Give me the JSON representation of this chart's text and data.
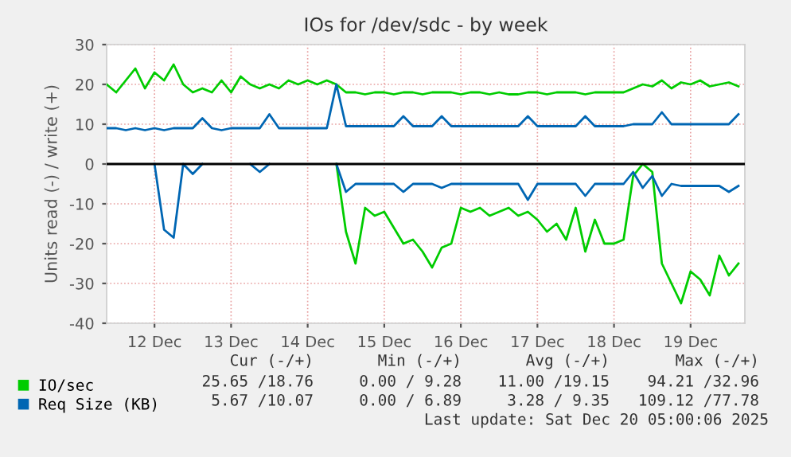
{
  "chart_data": {
    "type": "line",
    "title": "IOs for /dev/sdc - by week",
    "ylabel": "Units read (-) / write (+)",
    "x": [
      "2025-12-11T21:00",
      "2025-12-12T00:00",
      "2025-12-12T03:00",
      "2025-12-12T06:00",
      "2025-12-12T09:00",
      "2025-12-12T12:00",
      "2025-12-12T15:00",
      "2025-12-12T18:00",
      "2025-12-12T21:00",
      "2025-12-13T00:00",
      "2025-12-13T03:00",
      "2025-12-13T06:00",
      "2025-12-13T09:00",
      "2025-12-13T12:00",
      "2025-12-13T15:00",
      "2025-12-13T18:00",
      "2025-12-13T21:00",
      "2025-12-14T00:00",
      "2025-12-14T03:00",
      "2025-12-14T06:00",
      "2025-12-14T09:00",
      "2025-12-14T12:00",
      "2025-12-14T15:00",
      "2025-12-14T18:00",
      "2025-12-14T21:00",
      "2025-12-15T00:00",
      "2025-12-15T03:00",
      "2025-12-15T06:00",
      "2025-12-15T09:00",
      "2025-12-15T12:00",
      "2025-12-15T15:00",
      "2025-12-15T18:00",
      "2025-12-15T21:00",
      "2025-12-16T00:00",
      "2025-12-16T03:00",
      "2025-12-16T06:00",
      "2025-12-16T09:00",
      "2025-12-16T12:00",
      "2025-12-16T15:00",
      "2025-12-16T18:00",
      "2025-12-16T21:00",
      "2025-12-17T00:00",
      "2025-12-17T03:00",
      "2025-12-17T06:00",
      "2025-12-17T09:00",
      "2025-12-17T12:00",
      "2025-12-17T15:00",
      "2025-12-17T18:00",
      "2025-12-17T21:00",
      "2025-12-18T00:00",
      "2025-12-18T03:00",
      "2025-12-18T06:00",
      "2025-12-18T09:00",
      "2025-12-18T12:00",
      "2025-12-18T15:00",
      "2025-12-18T18:00",
      "2025-12-18T21:00",
      "2025-12-19T00:00",
      "2025-12-19T03:00",
      "2025-12-19T06:00",
      "2025-12-19T09:00",
      "2025-12-19T12:00",
      "2025-12-19T15:00",
      "2025-12-19T18:00",
      "2025-12-19T21:00",
      "2025-12-20T00:00",
      "2025-12-20T03:00"
    ],
    "series": [
      {
        "name": "IO/sec",
        "color": "#00cc00",
        "values": [
          20,
          18,
          21,
          24,
          19,
          23,
          21,
          25,
          20,
          18,
          19,
          18,
          21,
          18,
          22,
          20,
          19,
          20,
          19,
          21,
          20,
          21,
          20,
          21,
          20,
          18,
          18,
          17.5,
          18,
          18,
          17.5,
          18,
          18,
          17.5,
          18,
          18,
          18,
          17.5,
          18,
          18,
          17.5,
          18,
          17.5,
          17.5,
          18,
          18,
          17.5,
          18,
          18,
          18,
          17.5,
          18,
          18,
          18,
          18,
          19,
          20,
          19.5,
          21,
          19,
          20.5,
          20,
          21,
          19.5,
          20,
          20.5,
          19.5
        ]
      },
      {
        "color": "#00cc00",
        "values": [
          null,
          null,
          null,
          null,
          null,
          null,
          null,
          null,
          null,
          null,
          null,
          null,
          null,
          null,
          null,
          null,
          null,
          null,
          null,
          null,
          null,
          null,
          null,
          null,
          0,
          -17,
          -25,
          -11,
          -13,
          -12,
          -16,
          -20,
          -19,
          -22,
          -26,
          -21,
          -20,
          -11,
          -12,
          -11,
          -13,
          -12,
          -11,
          -13,
          -12,
          -14,
          -17,
          -15,
          -19,
          -11,
          -22,
          -14,
          -20,
          -20,
          -19,
          -3,
          0,
          -2,
          -25,
          -30,
          -35,
          -27,
          -29,
          -33,
          -23,
          -28,
          -25
        ]
      },
      {
        "name": "Req Size (KB)",
        "color": "#0066b3",
        "values": [
          9,
          9,
          8.5,
          9,
          8.5,
          9,
          8.5,
          9,
          9,
          9,
          11.5,
          9,
          8.5,
          9,
          9,
          9,
          9,
          12.5,
          9,
          9,
          9,
          9,
          9,
          9,
          20,
          9.5,
          9.5,
          9.5,
          9.5,
          9.5,
          9.5,
          12,
          9.5,
          9.5,
          9.5,
          12,
          9.5,
          9.5,
          9.5,
          9.5,
          9.5,
          9.5,
          9.5,
          9.5,
          12,
          9.5,
          9.5,
          9.5,
          9.5,
          9.5,
          12,
          9.5,
          9.5,
          9.5,
          9.5,
          10,
          10,
          10,
          13,
          10,
          10,
          10,
          10,
          10,
          10,
          10,
          12.5
        ]
      },
      {
        "color": "#0066b3",
        "values": [
          null,
          null,
          null,
          null,
          null,
          0,
          -16.5,
          -18.5,
          0,
          -2.5,
          0,
          null,
          null,
          null,
          null,
          0,
          -2,
          0,
          null,
          null,
          null,
          null,
          null,
          null,
          0,
          -7,
          -5,
          -5,
          -5,
          -5,
          -5,
          -7,
          -5,
          -5,
          -5,
          -6,
          -5,
          -5,
          -5,
          -5,
          -5,
          -5,
          -5,
          -5,
          -9,
          -5,
          -5,
          -5,
          -5,
          -5,
          -8,
          -5,
          -5,
          -5,
          -5,
          -2,
          -6,
          -3,
          -8,
          -5,
          -5.5,
          -5.5,
          -5.5,
          -5.5,
          -5.5,
          -7,
          -5.5
        ]
      }
    ],
    "xlim": [
      "2025-12-11T21:00",
      "2025-12-20T05:00"
    ],
    "xticks": [
      {
        "value": "2025-12-12T12:00",
        "label": "12 Dec"
      },
      {
        "value": "2025-12-13T12:00",
        "label": "13 Dec"
      },
      {
        "value": "2025-12-14T12:00",
        "label": "14 Dec"
      },
      {
        "value": "2025-12-15T12:00",
        "label": "15 Dec"
      },
      {
        "value": "2025-12-16T12:00",
        "label": "16 Dec"
      },
      {
        "value": "2025-12-17T12:00",
        "label": "17 Dec"
      },
      {
        "value": "2025-12-18T12:00",
        "label": "18 Dec"
      },
      {
        "value": "2025-12-19T12:00",
        "label": "19 Dec"
      }
    ],
    "ylim": [
      -40,
      30
    ],
    "yticks": [
      -40,
      -30,
      -20,
      -10,
      0,
      10,
      20,
      30
    ],
    "ref_lines": [
      {
        "axis": "y",
        "value": 0,
        "color": "#000000"
      }
    ],
    "grid": true,
    "legend": "bottom left",
    "marker": "none",
    "line_style": "solid",
    "annotations": [
      "Cur (-/+)",
      "Min (-/+)",
      "Avg (-/+)",
      "Max (-/+)",
      "25.65 /18.76",
      "0.00 / 9.28",
      "11.00 /19.15",
      "94.21 /32.96",
      "5.67 /10.07",
      "0.00 / 6.89",
      "3.28 / 9.35",
      "109.12 /77.78",
      "Last update: Sat Dec 20 05:00:06 2025"
    ]
  }
}
